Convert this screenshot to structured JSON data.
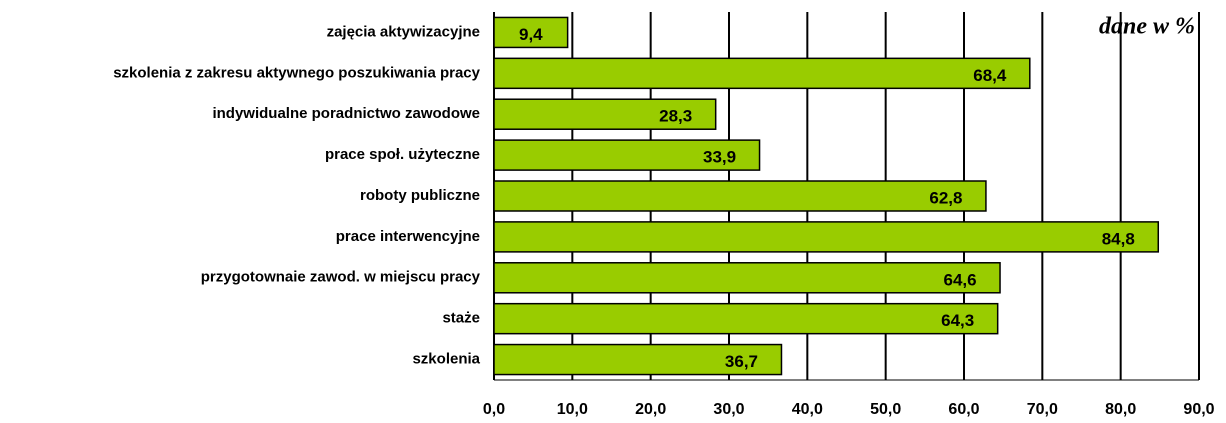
{
  "chart_data": {
    "type": "bar",
    "orientation": "horizontal",
    "annotation": "dane w %",
    "categories": [
      "zajęcia aktywizacyjne",
      "szkolenia z zakresu aktywnego poszukiwania pracy",
      "indywidualne poradnictwo zawodowe",
      "prace społ. użyteczne",
      "roboty publiczne",
      "prace interwencyjne",
      "przygotownaie zawod. w miejscu pracy",
      "staże",
      "szkolenia"
    ],
    "values": [
      9.4,
      68.4,
      28.3,
      33.9,
      62.8,
      84.8,
      64.6,
      64.3,
      36.7
    ],
    "value_labels": [
      "9,4",
      "68,4",
      "28,3",
      "33,9",
      "62,8",
      "84,8",
      "64,6",
      "64,3",
      "36,7"
    ],
    "color": "#99cc00",
    "xlim": [
      0,
      90
    ],
    "xticks": [
      {
        "value": 0,
        "label": "0,0"
      },
      {
        "value": 10,
        "label": "10,0"
      },
      {
        "value": 20,
        "label": "20,0"
      },
      {
        "value": 30,
        "label": "30,0"
      },
      {
        "value": 40,
        "label": "40,0"
      },
      {
        "value": 50,
        "label": "50,0"
      },
      {
        "value": 60,
        "label": "60,0"
      },
      {
        "value": 70,
        "label": "70,0"
      },
      {
        "value": 80,
        "label": "80,0"
      },
      {
        "value": 90,
        "label": "90,0"
      }
    ],
    "grid": true
  }
}
